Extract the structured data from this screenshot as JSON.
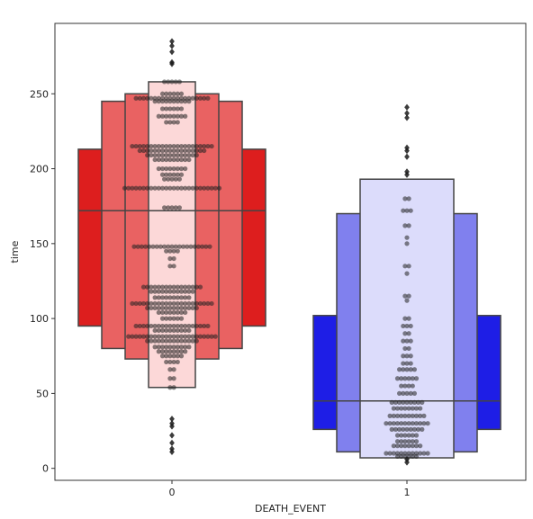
{
  "chart_data": {
    "type": "boxen",
    "xlabel": "DEATH_EVENT",
    "ylabel": "time",
    "categories": [
      "0",
      "1"
    ],
    "ylim": [
      -8,
      297
    ],
    "yticks": [
      0,
      50,
      100,
      150,
      200,
      250
    ],
    "grid": false,
    "legend": "none",
    "colors": {
      "0": [
        "#dd1e1e",
        "#e96262",
        "#fcd8d8"
      ],
      "1": [
        "#1e1ee6",
        "#8080ee",
        "#dcdcfb"
      ],
      "edge": "#444444",
      "points": "#222222"
    },
    "boxes": [
      {
        "category": "0",
        "median": 172,
        "levels": [
          {
            "low": 95,
            "high": 213
          },
          {
            "low": 80,
            "high": 245
          },
          {
            "low": 73,
            "high": 250
          },
          {
            "low": 54,
            "high": 258
          }
        ],
        "outliers": [
          285,
          282,
          278,
          271,
          270,
          33,
          30,
          28,
          22,
          17,
          13,
          11
        ]
      },
      {
        "category": "1",
        "median": 45,
        "levels": [
          {
            "low": 26,
            "high": 102
          },
          {
            "low": 11,
            "high": 170
          },
          {
            "low": 7,
            "high": 193
          }
        ],
        "outliers": [
          241,
          237,
          234,
          214,
          212,
          208,
          198,
          196,
          6,
          4
        ]
      }
    ],
    "points": {
      "0": [
        {
          "y": 258,
          "n": 5
        },
        {
          "y": 250,
          "n": 6
        },
        {
          "y": 247,
          "n": 20
        },
        {
          "y": 245,
          "n": 10
        },
        {
          "y": 240,
          "n": 6
        },
        {
          "y": 235,
          "n": 8
        },
        {
          "y": 231,
          "n": 4
        },
        {
          "y": 215,
          "n": 22
        },
        {
          "y": 212,
          "n": 18
        },
        {
          "y": 209,
          "n": 14
        },
        {
          "y": 206,
          "n": 10
        },
        {
          "y": 200,
          "n": 8
        },
        {
          "y": 196,
          "n": 6
        },
        {
          "y": 193,
          "n": 5
        },
        {
          "y": 187,
          "n": 26
        },
        {
          "y": 174,
          "n": 5
        },
        {
          "y": 148,
          "n": 21
        },
        {
          "y": 145,
          "n": 4
        },
        {
          "y": 140,
          "n": 2
        },
        {
          "y": 135,
          "n": 2
        },
        {
          "y": 121,
          "n": 16
        },
        {
          "y": 118,
          "n": 12
        },
        {
          "y": 114,
          "n": 10
        },
        {
          "y": 110,
          "n": 22
        },
        {
          "y": 107,
          "n": 14
        },
        {
          "y": 104,
          "n": 8
        },
        {
          "y": 100,
          "n": 6
        },
        {
          "y": 95,
          "n": 20
        },
        {
          "y": 92,
          "n": 10
        },
        {
          "y": 88,
          "n": 24
        },
        {
          "y": 85,
          "n": 14
        },
        {
          "y": 81,
          "n": 10
        },
        {
          "y": 78,
          "n": 8
        },
        {
          "y": 75,
          "n": 6
        },
        {
          "y": 71,
          "n": 4
        },
        {
          "y": 66,
          "n": 2
        },
        {
          "y": 60,
          "n": 2
        },
        {
          "y": 54,
          "n": 2
        }
      ],
      "1": [
        {
          "y": 180,
          "n": 2
        },
        {
          "y": 172,
          "n": 3
        },
        {
          "y": 162,
          "n": 2
        },
        {
          "y": 154,
          "n": 1
        },
        {
          "y": 150,
          "n": 1
        },
        {
          "y": 135,
          "n": 2
        },
        {
          "y": 130,
          "n": 1
        },
        {
          "y": 115,
          "n": 2
        },
        {
          "y": 112,
          "n": 1
        },
        {
          "y": 100,
          "n": 2
        },
        {
          "y": 95,
          "n": 3
        },
        {
          "y": 90,
          "n": 2
        },
        {
          "y": 85,
          "n": 3
        },
        {
          "y": 80,
          "n": 2
        },
        {
          "y": 75,
          "n": 3
        },
        {
          "y": 70,
          "n": 3
        },
        {
          "y": 66,
          "n": 5
        },
        {
          "y": 60,
          "n": 6
        },
        {
          "y": 55,
          "n": 4
        },
        {
          "y": 50,
          "n": 5
        },
        {
          "y": 44,
          "n": 9
        },
        {
          "y": 40,
          "n": 8
        },
        {
          "y": 35,
          "n": 10
        },
        {
          "y": 30,
          "n": 12
        },
        {
          "y": 26,
          "n": 9
        },
        {
          "y": 22,
          "n": 6
        },
        {
          "y": 18,
          "n": 6
        },
        {
          "y": 15,
          "n": 8
        },
        {
          "y": 10,
          "n": 12
        },
        {
          "y": 8,
          "n": 6
        }
      ]
    }
  }
}
